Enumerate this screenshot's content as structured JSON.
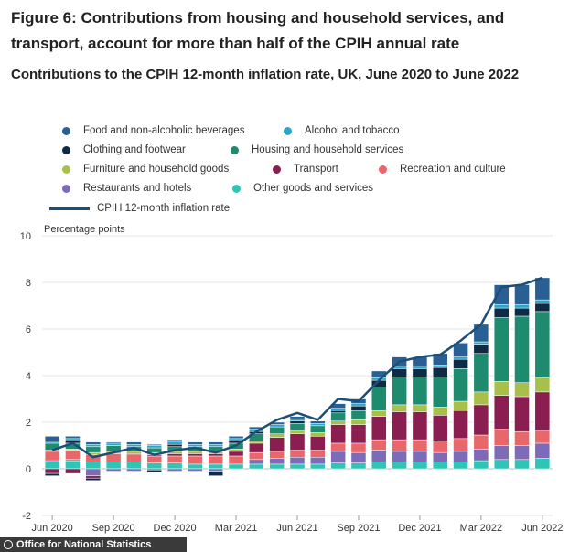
{
  "title": "Figure 6: Contributions from housing and household services, and transport, account for more than half of the CPIH annual rate",
  "subtitle": "Contributions to the CPIH 12-month inflation rate, UK, June 2020 to June 2022",
  "footer": {
    "source": "Office for National Statistics"
  },
  "chart_data": {
    "type": "bar",
    "stacked": true,
    "title": "Contributions to the CPIH 12-month inflation rate, UK, June 2020 to June 2022",
    "ylabel": "Percentage points",
    "ylim": [
      -2,
      10
    ],
    "yticks": [
      -2,
      0,
      2,
      4,
      6,
      8,
      10
    ],
    "grid": true,
    "legend_position": "top",
    "categories": [
      "Jun 2020",
      "Jul 2020",
      "Aug 2020",
      "Sep 2020",
      "Oct 2020",
      "Nov 2020",
      "Dec 2020",
      "Jan 2021",
      "Feb 2021",
      "Mar 2021",
      "Apr 2021",
      "May 2021",
      "Jun 2021",
      "Jul 2021",
      "Aug 2021",
      "Sep 2021",
      "Oct 2021",
      "Nov 2021",
      "Dec 2021",
      "Jan 2022",
      "Feb 2022",
      "Mar 2022",
      "Apr 2022",
      "May 2022",
      "Jun 2022"
    ],
    "xticks": [
      "Jun 2020",
      "Sep 2020",
      "Dec 2020",
      "Mar 2021",
      "Jun 2021",
      "Sep 2021",
      "Dec 2021",
      "Mar 2022",
      "Jun 2022"
    ],
    "series": [
      {
        "name": "Other goods and services",
        "color": "#2ec4b6",
        "values": [
          0.3,
          0.35,
          0.3,
          0.3,
          0.3,
          0.25,
          0.25,
          0.2,
          0.2,
          0.2,
          0.2,
          0.2,
          0.2,
          0.2,
          0.25,
          0.25,
          0.3,
          0.3,
          0.3,
          0.3,
          0.3,
          0.35,
          0.4,
          0.4,
          0.45
        ]
      },
      {
        "name": "Restaurants and hotels",
        "color": "#7e6bb8",
        "values": [
          0.05,
          0.05,
          -0.3,
          -0.1,
          -0.1,
          -0.05,
          -0.1,
          -0.1,
          -0.1,
          0.0,
          0.2,
          0.25,
          0.3,
          0.3,
          0.5,
          0.45,
          0.5,
          0.45,
          0.45,
          0.4,
          0.45,
          0.5,
          0.6,
          0.6,
          0.65
        ]
      },
      {
        "name": "Recreation and culture",
        "color": "#e8676b",
        "values": [
          0.4,
          0.4,
          0.3,
          0.35,
          0.3,
          0.3,
          0.3,
          0.35,
          0.35,
          0.35,
          0.3,
          0.3,
          0.3,
          0.3,
          0.35,
          0.4,
          0.45,
          0.5,
          0.5,
          0.5,
          0.55,
          0.6,
          0.7,
          0.6,
          0.55
        ]
      },
      {
        "name": "Transport",
        "color": "#8a1e50",
        "values": [
          -0.2,
          -0.2,
          -0.1,
          0.0,
          0.05,
          0.05,
          0.1,
          0.1,
          0.1,
          0.2,
          0.4,
          0.6,
          0.7,
          0.6,
          0.8,
          0.8,
          1.0,
          1.2,
          1.2,
          1.1,
          1.2,
          1.3,
          1.45,
          1.5,
          1.65
        ]
      },
      {
        "name": "Furniture and household goods",
        "color": "#a8c04a",
        "values": [
          0.05,
          0.05,
          0.1,
          0.1,
          0.1,
          0.1,
          0.1,
          0.1,
          0.1,
          0.1,
          0.1,
          0.15,
          0.15,
          0.15,
          0.15,
          0.2,
          0.25,
          0.3,
          0.3,
          0.35,
          0.4,
          0.55,
          0.6,
          0.6,
          0.6
        ]
      },
      {
        "name": "Housing and household services",
        "color": "#1e8a6e",
        "values": [
          0.3,
          0.25,
          0.25,
          0.25,
          0.2,
          0.2,
          0.2,
          0.2,
          0.2,
          0.25,
          0.3,
          0.3,
          0.3,
          0.3,
          0.35,
          0.4,
          1.0,
          1.2,
          1.2,
          1.3,
          1.4,
          1.65,
          2.75,
          2.85,
          2.85
        ]
      },
      {
        "name": "Clothing and footwear",
        "color": "#0f2a44",
        "values": [
          -0.1,
          0.1,
          -0.1,
          0.0,
          0.0,
          -0.1,
          0.1,
          0.0,
          -0.2,
          0.1,
          0.1,
          0.0,
          0.1,
          0.0,
          0.1,
          0.2,
          0.3,
          0.35,
          0.35,
          0.4,
          0.4,
          0.4,
          0.4,
          0.35,
          0.35
        ]
      },
      {
        "name": "Alcohol and tobacco",
        "color": "#2aa7c7",
        "values": [
          0.1,
          0.1,
          0.1,
          0.1,
          0.1,
          0.1,
          0.1,
          0.1,
          0.1,
          0.1,
          0.1,
          0.1,
          0.1,
          0.1,
          0.1,
          0.1,
          0.1,
          0.1,
          0.1,
          0.1,
          0.1,
          0.1,
          0.15,
          0.15,
          0.15
        ]
      },
      {
        "name": "Food and non-alcoholic beverages",
        "color": "#2a5f94",
        "values": [
          0.2,
          0.1,
          0.1,
          0.05,
          0.1,
          0.05,
          0.1,
          0.1,
          0.1,
          0.1,
          0.1,
          0.1,
          0.1,
          0.1,
          0.2,
          0.2,
          0.3,
          0.4,
          0.4,
          0.5,
          0.6,
          0.75,
          0.85,
          0.85,
          0.95
        ]
      }
    ],
    "line": {
      "name": "CPIH 12-month inflation rate",
      "color": "#1b4f78",
      "values": [
        0.8,
        1.1,
        0.5,
        0.7,
        0.9,
        0.6,
        0.8,
        0.9,
        0.7,
        1.0,
        1.6,
        2.1,
        2.4,
        2.1,
        3.0,
        2.9,
        3.8,
        4.6,
        4.8,
        4.9,
        5.5,
        6.2,
        7.8,
        7.9,
        8.2
      ]
    }
  },
  "legend": [
    {
      "name": "Food and non-alcoholic beverages",
      "color": "#2a5f94"
    },
    {
      "name": "Alcohol and tobacco",
      "color": "#2aa7c7"
    },
    {
      "name": "Clothing and footwear",
      "color": "#0f2a44"
    },
    {
      "name": "Housing and household services",
      "color": "#1e8a6e"
    },
    {
      "name": "Furniture and household goods",
      "color": "#a8c04a"
    },
    {
      "name": "Transport",
      "color": "#8a1e50"
    },
    {
      "name": "Recreation and culture",
      "color": "#e8676b"
    },
    {
      "name": "Restaurants and hotels",
      "color": "#7e6bb8"
    },
    {
      "name": "Other goods and services",
      "color": "#2ec4b6"
    },
    {
      "name": "CPIH 12-month inflation rate",
      "color": "#1b4f78"
    }
  ]
}
